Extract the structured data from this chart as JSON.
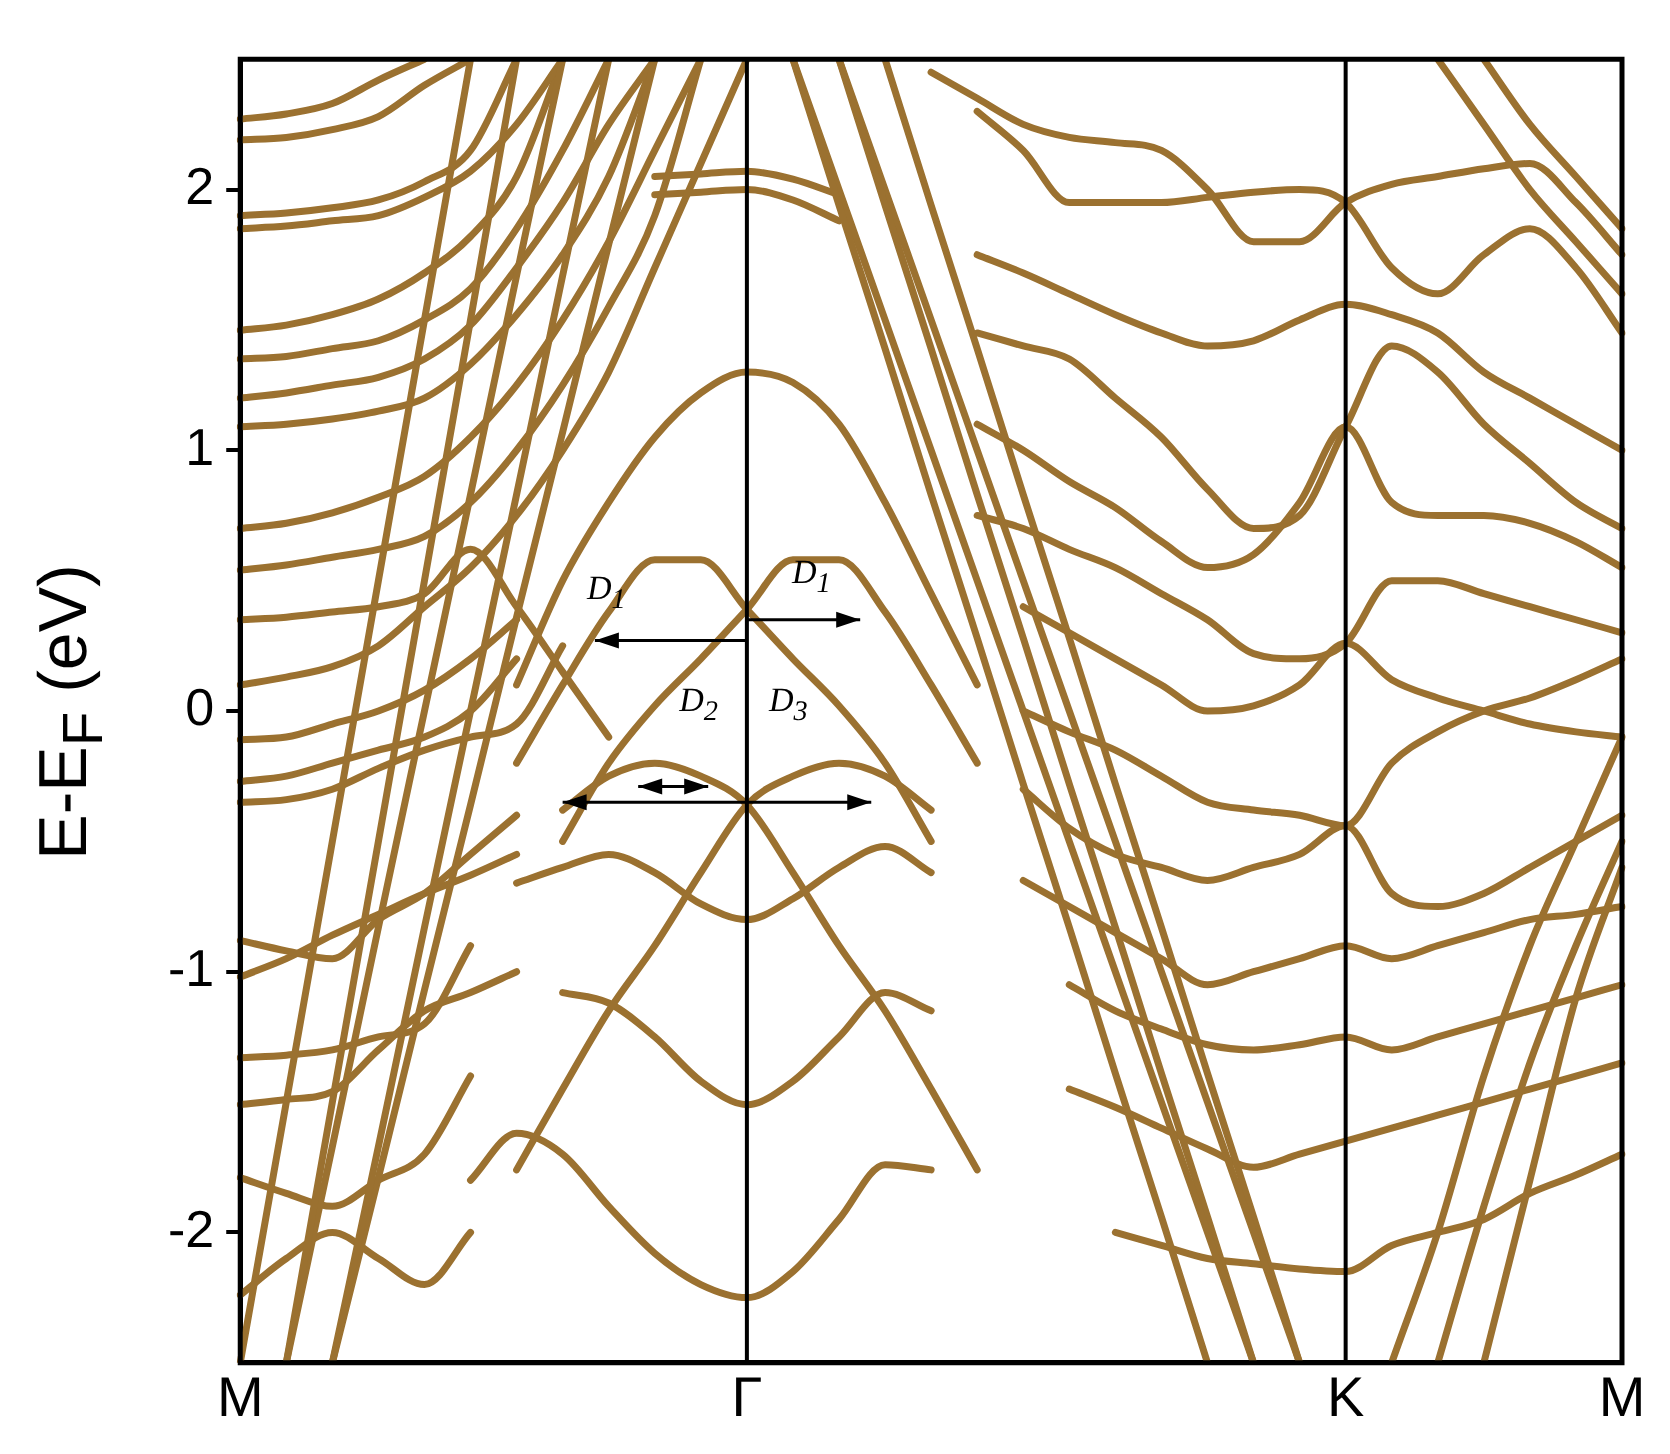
{
  "chart_data": {
    "type": "line",
    "ylabel": "E-E$_{F}$ (eV)",
    "categories": [
      "M",
      null,
      null,
      null,
      null,
      null,
      null,
      null,
      null,
      null,
      null,
      "Γ",
      null,
      null,
      null,
      null,
      null,
      null,
      null,
      null,
      null,
      null,
      null,
      null,
      "K",
      null,
      null,
      null,
      null,
      null,
      "M"
    ],
    "ylim": [
      -2.5,
      2.5
    ],
    "yticks": [
      -2,
      -1,
      0,
      1,
      2
    ],
    "grid": false,
    "legend": false,
    "marker": "none",
    "line_style": "solid",
    "ref_lines": [
      {
        "axis": "x",
        "value": "Γ",
        "color": "#000000"
      },
      {
        "axis": "x",
        "value": "K",
        "color": "#000000"
      }
    ],
    "annotations": [
      "D$_{1}$",
      "D$_{1}$",
      "D$_{2}$",
      "D$_{3}$"
    ],
    "series": [
      {
        "color": "#9b7130",
        "values": [
          null,
          null,
          null,
          null,
          null,
          null,
          0.1,
          0.5,
          0.8,
          1.05,
          1.22,
          1.3,
          1.26,
          1.1,
          0.8,
          0.45,
          0.1,
          null,
          null,
          null,
          null,
          null,
          null,
          null,
          null,
          null,
          null,
          null,
          null,
          null,
          null
        ]
      },
      {
        "color": "#9b7130",
        "values": [
          null,
          null,
          null,
          null,
          null,
          null,
          -0.2,
          0.1,
          0.38,
          0.58,
          0.58,
          0.39,
          0.2,
          0.02,
          -0.2,
          -0.5,
          null,
          null,
          null,
          null,
          null,
          null,
          null,
          null,
          null,
          null,
          null,
          null,
          null,
          null,
          null
        ]
      },
      {
        "color": "#9b7130",
        "values": [
          null,
          null,
          null,
          null,
          null,
          null,
          null,
          -0.5,
          -0.2,
          0.02,
          0.2,
          0.39,
          0.58,
          0.58,
          0.38,
          0.1,
          -0.2,
          null,
          null,
          null,
          null,
          null,
          null,
          null,
          null,
          null,
          null,
          null,
          null,
          null,
          null
        ]
      },
      {
        "color": "#9b7130",
        "values": [
          null,
          null,
          null,
          null,
          null,
          null,
          null,
          -0.38,
          -0.25,
          -0.2,
          -0.25,
          -0.36,
          -0.62,
          -0.9,
          -1.15,
          -1.45,
          -1.76,
          null,
          null,
          null,
          null,
          null,
          null,
          null,
          null,
          null,
          null,
          null,
          null,
          null,
          null
        ]
      },
      {
        "color": "#9b7130",
        "values": [
          null,
          null,
          null,
          null,
          null,
          null,
          -1.76,
          -1.45,
          -1.15,
          -0.9,
          -0.62,
          -0.36,
          -0.25,
          -0.2,
          -0.25,
          -0.38,
          null,
          null,
          null,
          null,
          null,
          null,
          null,
          null,
          null,
          null,
          null,
          null,
          null,
          null,
          null
        ]
      },
      {
        "color": "#9b7130",
        "values": [
          null,
          null,
          null,
          null,
          null,
          null,
          -0.66,
          -0.6,
          -0.55,
          -0.62,
          -0.74,
          -0.8,
          -0.72,
          -0.6,
          -0.52,
          -0.62,
          null,
          null,
          null,
          null,
          null,
          null,
          null,
          null,
          null,
          null,
          null,
          null,
          null,
          null,
          null
        ]
      },
      {
        "color": "#9b7130",
        "values": [
          null,
          null,
          null,
          null,
          null,
          null,
          null,
          -1.08,
          -1.12,
          -1.25,
          -1.42,
          -1.51,
          -1.42,
          -1.25,
          -1.08,
          -1.15,
          null,
          null,
          null,
          null,
          null,
          null,
          null,
          null,
          null,
          null,
          null,
          null,
          null,
          null,
          null
        ]
      },
      {
        "color": "#9b7130",
        "values": [
          null,
          null,
          null,
          null,
          null,
          -1.8,
          -1.62,
          -1.7,
          -1.9,
          -2.08,
          -2.2,
          -2.25,
          -2.15,
          -1.95,
          -1.74,
          -1.76,
          null,
          null,
          null,
          null,
          null,
          null,
          null,
          null,
          null,
          null,
          null,
          null,
          null,
          null,
          null
        ]
      },
      {
        "color": "#9b7130",
        "values": [
          -2.5,
          -1.5,
          -0.5,
          0.5,
          1.5,
          2.5,
          null,
          null,
          null,
          null,
          null,
          null,
          null,
          null,
          null,
          null,
          null,
          null,
          null,
          null,
          null,
          null,
          null,
          null,
          null,
          null,
          null,
          null,
          null,
          null,
          null
        ]
      },
      {
        "color": "#9b7130",
        "values": [
          null,
          -2.5,
          -1.5,
          -0.5,
          0.5,
          1.5,
          2.5,
          null,
          null,
          null,
          null,
          null,
          null,
          null,
          null,
          null,
          null,
          null,
          null,
          null,
          null,
          null,
          null,
          null,
          null,
          null,
          null,
          null,
          null,
          null,
          null
        ]
      },
      {
        "color": "#9b7130",
        "values": [
          null,
          -2.5,
          -1.67,
          -0.83,
          0,
          0.83,
          1.67,
          2.5,
          null,
          null,
          null,
          null,
          null,
          null,
          null,
          null,
          null,
          null,
          null,
          null,
          null,
          null,
          null,
          null,
          null,
          null,
          null,
          null,
          null,
          null,
          null
        ]
      },
      {
        "color": "#9b7130",
        "values": [
          null,
          null,
          -2.5,
          -1.67,
          -0.83,
          0,
          0.83,
          1.67,
          2.5,
          null,
          null,
          null,
          null,
          null,
          null,
          null,
          null,
          null,
          null,
          null,
          null,
          null,
          null,
          null,
          null,
          null,
          null,
          null,
          null,
          null,
          null
        ]
      },
      {
        "color": "#9b7130",
        "values": [
          null,
          null,
          -2.5,
          -1.79,
          -1.07,
          -0.36,
          0.36,
          1.07,
          1.79,
          2.5,
          null,
          null,
          null,
          null,
          null,
          null,
          null,
          null,
          null,
          null,
          null,
          null,
          null,
          null,
          null,
          null,
          null,
          null,
          null,
          null,
          null
        ]
      },
      {
        "color": "#9b7130",
        "values": [
          null,
          null,
          null,
          null,
          null,
          null,
          null,
          null,
          null,
          null,
          null,
          null,
          2.5,
          1.94,
          1.39,
          0.83,
          0.28,
          -0.28,
          -0.83,
          -1.39,
          -1.94,
          -2.5,
          null,
          null,
          null,
          null,
          null,
          null,
          null,
          null,
          null
        ]
      },
      {
        "color": "#9b7130",
        "values": [
          null,
          null,
          null,
          null,
          null,
          null,
          null,
          null,
          null,
          null,
          null,
          null,
          2.5,
          2,
          1.5,
          1,
          0.5,
          0,
          -0.5,
          -1,
          -1.5,
          -2,
          -2.5,
          null,
          null,
          null,
          null,
          null,
          null,
          null,
          null
        ]
      },
      {
        "color": "#9b7130",
        "values": [
          null,
          null,
          null,
          null,
          null,
          null,
          null,
          null,
          null,
          null,
          null,
          null,
          null,
          2.5,
          1.94,
          1.39,
          0.83,
          0.28,
          -0.28,
          -0.83,
          -1.39,
          -1.94,
          -2.5,
          null,
          null,
          null,
          null,
          null,
          null,
          null,
          null
        ]
      },
      {
        "color": "#9b7130",
        "values": [
          null,
          null,
          null,
          null,
          null,
          null,
          null,
          null,
          null,
          null,
          null,
          null,
          null,
          2.5,
          2,
          1.5,
          1,
          0.5,
          0,
          -0.5,
          -1,
          -1.5,
          -2,
          -2.5,
          null,
          null,
          null,
          null,
          null,
          null,
          null
        ]
      },
      {
        "color": "#9b7130",
        "values": [
          null,
          null,
          null,
          null,
          null,
          null,
          null,
          null,
          null,
          null,
          null,
          null,
          null,
          null,
          2.5,
          1.94,
          1.39,
          0.83,
          0.28,
          -0.28,
          -0.83,
          -1.39,
          -1.94,
          -2.5,
          null,
          null,
          null,
          null,
          null,
          null,
          null
        ]
      },
      {
        "color": "#9b7130",
        "values": [
          2.27,
          2.29,
          2.33,
          2.42,
          2.5,
          null,
          null,
          null,
          null,
          null,
          null,
          null,
          null,
          null,
          null,
          null,
          null,
          null,
          null,
          null,
          null,
          null,
          null,
          null,
          null,
          null,
          null,
          null,
          null,
          null,
          null
        ]
      },
      {
        "color": "#9b7130",
        "values": [
          2.19,
          2.2,
          2.23,
          2.28,
          2.4,
          2.5,
          null,
          null,
          null,
          null,
          null,
          null,
          null,
          null,
          null,
          null,
          null,
          null,
          null,
          null,
          null,
          null,
          null,
          null,
          null,
          null,
          null,
          null,
          null,
          null,
          null
        ]
      },
      {
        "color": "#9b7130",
        "values": [
          1.9,
          1.91,
          1.93,
          1.96,
          2.03,
          2.15,
          2.5,
          null,
          null,
          null,
          null,
          null,
          null,
          null,
          null,
          null,
          null,
          null,
          null,
          null,
          null,
          null,
          null,
          null,
          null,
          null,
          null,
          null,
          null,
          null,
          null
        ]
      },
      {
        "color": "#9b7130",
        "values": [
          1.85,
          1.86,
          1.88,
          1.9,
          1.97,
          2.07,
          2.25,
          2.5,
          null,
          null,
          null,
          null,
          null,
          null,
          null,
          null,
          null,
          null,
          null,
          null,
          null,
          null,
          null,
          null,
          null,
          null,
          null,
          null,
          null,
          null,
          null
        ]
      },
      {
        "color": "#9b7130",
        "values": [
          1.46,
          1.48,
          1.52,
          1.58,
          1.68,
          1.82,
          2.05,
          2.5,
          null,
          null,
          null,
          null,
          null,
          null,
          null,
          null,
          null,
          null,
          null,
          null,
          null,
          null,
          null,
          null,
          null,
          null,
          null,
          null,
          null,
          null,
          null
        ]
      },
      {
        "color": "#9b7130",
        "values": [
          1.35,
          1.36,
          1.39,
          1.42,
          1.5,
          1.62,
          1.85,
          2.15,
          2.5,
          null,
          null,
          null,
          null,
          null,
          null,
          null,
          null,
          null,
          null,
          null,
          null,
          null,
          null,
          null,
          null,
          null,
          null,
          null,
          null,
          null,
          null
        ]
      },
      {
        "color": "#9b7130",
        "values": [
          1.2,
          1.22,
          1.25,
          1.28,
          1.35,
          1.48,
          1.7,
          1.95,
          2.25,
          2.5,
          null,
          null,
          null,
          null,
          null,
          null,
          null,
          null,
          null,
          null,
          null,
          null,
          null,
          null,
          null,
          null,
          null,
          null,
          null,
          null,
          null
        ]
      },
      {
        "color": "#9b7130",
        "values": [
          1.09,
          1.1,
          1.12,
          1.15,
          1.2,
          1.33,
          1.52,
          1.75,
          2.05,
          2.5,
          null,
          null,
          null,
          null,
          null,
          null,
          null,
          null,
          null,
          null,
          null,
          null,
          null,
          null,
          null,
          null,
          null,
          null,
          null,
          null,
          null
        ]
      },
      {
        "color": "#9b7130",
        "values": [
          0.7,
          0.72,
          0.76,
          0.82,
          0.9,
          1.05,
          1.25,
          1.5,
          1.8,
          2.15,
          2.5,
          null,
          null,
          null,
          null,
          null,
          null,
          null,
          null,
          null,
          null,
          null,
          null,
          null,
          null,
          null,
          null,
          null,
          null,
          null,
          null
        ]
      },
      {
        "color": "#9b7130",
        "values": [
          0.54,
          0.56,
          0.59,
          0.62,
          0.67,
          0.8,
          1.0,
          1.25,
          1.55,
          1.9,
          2.5,
          null,
          null,
          null,
          null,
          null,
          null,
          null,
          null,
          null,
          null,
          null,
          null,
          null,
          null,
          null,
          null,
          null,
          null,
          null,
          null
        ]
      },
      {
        "color": "#9b7130",
        "values": [
          0.35,
          0.36,
          0.38,
          0.4,
          0.45,
          0.62,
          0.4,
          0.15,
          -0.1,
          null,
          null,
          null,
          null,
          null,
          null,
          null,
          null,
          null,
          null,
          null,
          null,
          null,
          null,
          null,
          null,
          null,
          null,
          null,
          null,
          null,
          null
        ]
      },
      {
        "color": "#9b7130",
        "values": [
          0.1,
          0.13,
          0.17,
          0.25,
          0.4,
          0.55,
          0.75,
          1.0,
          1.3,
          1.7,
          2.1,
          2.5,
          null,
          null,
          null,
          null,
          null,
          null,
          null,
          null,
          null,
          null,
          null,
          null,
          null,
          null,
          null,
          null,
          null,
          null,
          null
        ]
      },
      {
        "color": "#9b7130",
        "values": [
          null,
          null,
          null,
          null,
          null,
          null,
          null,
          null,
          null,
          2.05,
          2.06,
          2.07,
          2.04,
          1.98,
          null,
          null,
          null,
          null,
          null,
          null,
          null,
          null,
          null,
          null,
          null,
          null,
          null,
          null,
          null,
          null,
          null
        ]
      },
      {
        "color": "#9b7130",
        "values": [
          null,
          null,
          null,
          null,
          null,
          null,
          null,
          null,
          null,
          1.98,
          1.99,
          2.0,
          1.96,
          1.88,
          null,
          null,
          null,
          null,
          null,
          null,
          null,
          null,
          null,
          null,
          null,
          null,
          null,
          null,
          null,
          null,
          null
        ]
      },
      {
        "color": "#9b7130",
        "values": [
          null,
          null,
          null,
          null,
          null,
          null,
          null,
          null,
          null,
          null,
          null,
          null,
          null,
          null,
          null,
          2.45,
          2.35,
          2.25,
          2.2,
          2.18,
          2.15,
          2.0,
          1.8,
          1.8,
          1.95,
          2.02,
          2.05,
          2.08,
          2.1,
          1.95,
          1.75
        ]
      },
      {
        "color": "#9b7130",
        "values": [
          null,
          null,
          null,
          null,
          null,
          null,
          null,
          null,
          null,
          null,
          null,
          null,
          null,
          null,
          null,
          null,
          2.3,
          2.15,
          1.95,
          1.95,
          1.95,
          1.97,
          1.99,
          2.0,
          1.95,
          1.7,
          1.6,
          1.75,
          1.85,
          1.7,
          1.45
        ]
      },
      {
        "color": "#9b7130",
        "values": [
          null,
          null,
          null,
          null,
          null,
          null,
          null,
          null,
          null,
          null,
          null,
          null,
          null,
          null,
          null,
          null,
          1.75,
          1.68,
          1.6,
          1.52,
          1.45,
          1.4,
          1.42,
          1.5,
          1.56,
          1.52,
          1.45,
          1.3,
          1.2,
          1.1,
          1.0
        ]
      },
      {
        "color": "#9b7130",
        "values": [
          null,
          null,
          null,
          null,
          null,
          null,
          null,
          null,
          null,
          null,
          null,
          null,
          null,
          null,
          null,
          null,
          1.45,
          1.4,
          1.35,
          1.2,
          1.05,
          0.85,
          0.7,
          0.75,
          1.09,
          1.4,
          1.3,
          1.1,
          0.95,
          0.8,
          0.7
        ]
      },
      {
        "color": "#9b7130",
        "values": [
          null,
          null,
          null,
          null,
          null,
          null,
          null,
          null,
          null,
          null,
          null,
          null,
          null,
          null,
          null,
          null,
          1.1,
          1.0,
          0.88,
          0.78,
          0.65,
          0.55,
          0.6,
          0.8,
          1.09,
          0.8,
          0.75,
          0.75,
          0.72,
          0.65,
          0.55
        ]
      },
      {
        "color": "#9b7130",
        "values": [
          null,
          null,
          null,
          null,
          null,
          null,
          null,
          null,
          null,
          null,
          null,
          null,
          null,
          null,
          null,
          null,
          0.75,
          0.7,
          0.62,
          0.55,
          0.45,
          0.35,
          0.22,
          0.2,
          0.26,
          0.5,
          0.5,
          0.45,
          0.4,
          0.35,
          0.3
        ]
      },
      {
        "color": "#9b7130",
        "values": [
          null,
          null,
          null,
          null,
          null,
          null,
          null,
          null,
          null,
          null,
          null,
          null,
          null,
          null,
          null,
          null,
          null,
          0.4,
          0.3,
          0.2,
          0.1,
          0.0,
          0.02,
          0.1,
          0.26,
          0.12,
          0.05,
          0.0,
          -0.05,
          -0.08,
          -0.1
        ]
      },
      {
        "color": "#9b7130",
        "values": [
          null,
          null,
          null,
          null,
          null,
          null,
          null,
          null,
          null,
          null,
          null,
          null,
          null,
          null,
          null,
          null,
          null,
          0.0,
          -0.08,
          -0.15,
          -0.25,
          -0.35,
          -0.38,
          -0.4,
          -0.44,
          -0.2,
          -0.08,
          0.0,
          0.05,
          0.12,
          0.2
        ]
      },
      {
        "color": "#9b7130",
        "values": [
          null,
          null,
          null,
          null,
          null,
          null,
          null,
          null,
          null,
          null,
          null,
          null,
          null,
          null,
          null,
          null,
          null,
          -0.3,
          -0.45,
          -0.55,
          -0.6,
          -0.65,
          -0.6,
          -0.55,
          -0.44,
          -0.7,
          -0.75,
          -0.7,
          -0.6,
          -0.5,
          -0.4
        ]
      },
      {
        "color": "#9b7130",
        "values": [
          null,
          null,
          null,
          null,
          null,
          null,
          null,
          null,
          null,
          null,
          null,
          null,
          null,
          null,
          null,
          null,
          null,
          -0.65,
          -0.75,
          -0.85,
          -0.95,
          -1.05,
          -1.0,
          -0.95,
          -0.9,
          -0.95,
          -0.9,
          -0.85,
          -0.8,
          -0.78,
          -0.75
        ]
      },
      {
        "color": "#9b7130",
        "values": [
          null,
          null,
          null,
          null,
          null,
          null,
          null,
          null,
          null,
          null,
          null,
          null,
          null,
          null,
          null,
          null,
          null,
          null,
          -1.05,
          -1.15,
          -1.22,
          -1.28,
          -1.3,
          -1.28,
          -1.25,
          -1.3,
          -1.25,
          -1.2,
          -1.15,
          -1.1,
          -1.05
        ]
      },
      {
        "color": "#9b7130",
        "values": [
          null,
          null,
          null,
          null,
          null,
          null,
          null,
          null,
          null,
          null,
          null,
          null,
          null,
          null,
          null,
          null,
          null,
          null,
          -1.45,
          -1.52,
          -1.6,
          -1.68,
          -1.75,
          -1.7,
          -1.65,
          -1.6,
          -1.55,
          -1.5,
          -1.45,
          -1.4,
          -1.35
        ]
      },
      {
        "color": "#9b7130",
        "values": [
          null,
          null,
          null,
          null,
          null,
          null,
          null,
          null,
          null,
          null,
          null,
          null,
          null,
          null,
          null,
          null,
          null,
          null,
          null,
          -2.0,
          -2.05,
          -2.1,
          -2.12,
          -2.14,
          -2.15,
          -2.05,
          -2.0,
          -1.95,
          -1.85,
          -1.78,
          -1.7
        ]
      },
      {
        "color": "#9b7130",
        "values": [
          null,
          null,
          null,
          null,
          null,
          null,
          null,
          null,
          null,
          null,
          null,
          null,
          null,
          null,
          null,
          null,
          null,
          null,
          null,
          null,
          null,
          null,
          null,
          null,
          null,
          -2.5,
          -2.0,
          -1.4,
          -0.9,
          -0.5,
          -0.1
        ]
      },
      {
        "color": "#9b7130",
        "values": [
          null,
          null,
          null,
          null,
          null,
          null,
          null,
          null,
          null,
          null,
          null,
          null,
          null,
          null,
          null,
          null,
          null,
          null,
          null,
          null,
          null,
          null,
          null,
          null,
          null,
          null,
          -2.5,
          -1.9,
          -1.35,
          -0.9,
          -0.5
        ]
      },
      {
        "color": "#9b7130",
        "values": [
          null,
          null,
          null,
          null,
          null,
          null,
          null,
          null,
          null,
          null,
          null,
          null,
          null,
          null,
          null,
          null,
          null,
          null,
          null,
          null,
          null,
          null,
          null,
          null,
          null,
          null,
          null,
          -2.5,
          -1.8,
          -1.1,
          -0.6
        ]
      },
      {
        "color": "#9b7130",
        "values": [
          null,
          null,
          null,
          null,
          null,
          null,
          null,
          null,
          null,
          null,
          null,
          null,
          null,
          null,
          null,
          null,
          null,
          null,
          null,
          null,
          null,
          null,
          null,
          null,
          null,
          null,
          2.5,
          2.25,
          2.0,
          1.8,
          1.6
        ]
      },
      {
        "color": "#9b7130",
        "values": [
          null,
          null,
          null,
          null,
          null,
          null,
          null,
          null,
          null,
          null,
          null,
          null,
          null,
          null,
          null,
          null,
          null,
          null,
          null,
          null,
          null,
          null,
          null,
          null,
          null,
          null,
          null,
          2.5,
          2.25,
          2.05,
          1.85
        ]
      },
      {
        "color": "#9b7130",
        "values": [
          -0.11,
          -0.1,
          -0.05,
          0.0,
          0.08,
          0.2,
          0.35,
          null,
          null,
          null,
          null,
          null,
          null,
          null,
          null,
          null,
          null,
          null,
          null,
          null,
          null,
          null,
          null,
          null,
          null,
          null,
          null,
          null,
          null,
          null,
          null
        ]
      },
      {
        "color": "#9b7130",
        "values": [
          -0.27,
          -0.25,
          -0.2,
          -0.15,
          -0.1,
          0.0,
          0.2,
          null,
          null,
          null,
          null,
          null,
          null,
          null,
          null,
          null,
          null,
          null,
          null,
          null,
          null,
          null,
          null,
          null,
          null,
          null,
          null,
          null,
          null,
          null,
          null
        ]
      },
      {
        "color": "#9b7130",
        "values": [
          -0.35,
          -0.34,
          -0.3,
          -0.22,
          -0.15,
          -0.1,
          -0.05,
          0.25,
          null,
          null,
          null,
          null,
          null,
          null,
          null,
          null,
          null,
          null,
          null,
          null,
          null,
          null,
          null,
          null,
          null,
          null,
          null,
          null,
          null,
          null,
          null
        ]
      },
      {
        "color": "#9b7130",
        "values": [
          -0.88,
          -0.92,
          -0.95,
          -0.8,
          -0.7,
          -0.55,
          -0.4,
          null,
          null,
          null,
          null,
          null,
          null,
          null,
          null,
          null,
          null,
          null,
          null,
          null,
          null,
          null,
          null,
          null,
          null,
          null,
          null,
          null,
          null,
          null,
          null
        ]
      },
      {
        "color": "#9b7130",
        "values": [
          -1.02,
          -0.95,
          -0.86,
          -0.78,
          -0.7,
          -0.63,
          -0.55,
          null,
          null,
          null,
          null,
          null,
          null,
          null,
          null,
          null,
          null,
          null,
          null,
          null,
          null,
          null,
          null,
          null,
          null,
          null,
          null,
          null,
          null,
          null,
          null
        ]
      },
      {
        "color": "#9b7130",
        "values": [
          -1.33,
          -1.32,
          -1.3,
          -1.25,
          -1.2,
          -0.9,
          null,
          null,
          null,
          null,
          null,
          null,
          null,
          null,
          null,
          null,
          null,
          null,
          null,
          null,
          null,
          null,
          null,
          null,
          null,
          null,
          null,
          null,
          null,
          null,
          null
        ]
      },
      {
        "color": "#9b7130",
        "values": [
          -1.51,
          -1.49,
          -1.46,
          -1.3,
          -1.15,
          -1.08,
          -1.0,
          null,
          null,
          null,
          null,
          null,
          null,
          null,
          null,
          null,
          null,
          null,
          null,
          null,
          null,
          null,
          null,
          null,
          null,
          null,
          null,
          null,
          null,
          null,
          null
        ]
      },
      {
        "color": "#9b7130",
        "values": [
          -1.79,
          -1.85,
          -1.9,
          -1.8,
          -1.7,
          -1.4,
          null,
          null,
          null,
          null,
          null,
          null,
          null,
          null,
          null,
          null,
          null,
          null,
          null,
          null,
          null,
          null,
          null,
          null,
          null,
          null,
          null,
          null,
          null,
          null,
          null
        ]
      },
      {
        "color": "#9b7130",
        "values": [
          -2.24,
          -2.1,
          -2.0,
          -2.1,
          -2.2,
          -2.0,
          null,
          null,
          null,
          null,
          null,
          null,
          null,
          null,
          null,
          null,
          null,
          null,
          null,
          null,
          null,
          null,
          null,
          null,
          null,
          null,
          null,
          null,
          null,
          null,
          null
        ]
      }
    ]
  }
}
